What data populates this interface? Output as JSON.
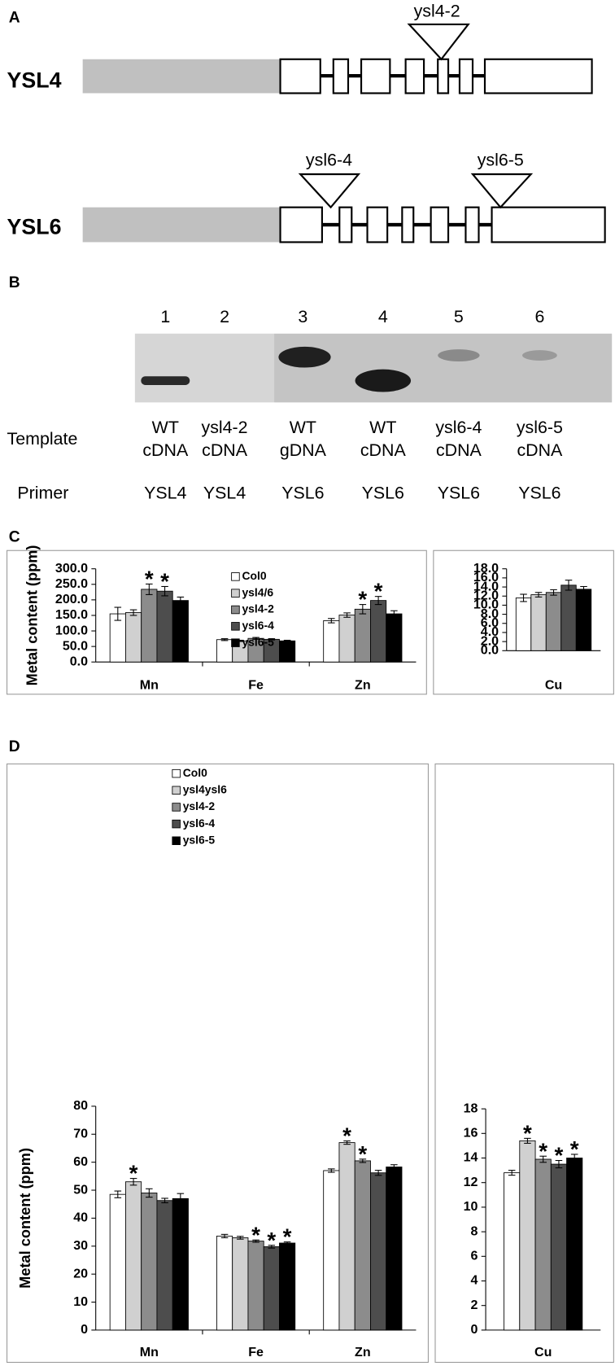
{
  "panel_a": {
    "label": "A",
    "genes": [
      {
        "name": "YSL4",
        "insertions": [
          "ysl4-2"
        ]
      },
      {
        "name": "YSL6",
        "insertions": [
          "ysl6-4",
          "ysl6-5"
        ]
      }
    ]
  },
  "panel_b": {
    "label": "B",
    "lanes": [
      "1",
      "2",
      "3",
      "4",
      "5",
      "6"
    ],
    "template_label": "Template",
    "templates": [
      [
        "WT",
        "cDNA"
      ],
      [
        "ysl4-2",
        "cDNA"
      ],
      [
        "WT",
        "gDNA"
      ],
      [
        "WT",
        "cDNA"
      ],
      [
        "ysl6-4",
        "cDNA"
      ],
      [
        "ysl6-5",
        "cDNA"
      ]
    ],
    "primer_label": "Primer",
    "primers": [
      "YSL4",
      "YSL4",
      "YSL6",
      "YSL6",
      "YSL6",
      "YSL6"
    ]
  },
  "chart_data": [
    {
      "type": "bar",
      "panel": "C",
      "y_label": "Metal content (ppm)",
      "categories": [
        "Mn",
        "Fe",
        "Zn"
      ],
      "ylim": [
        0,
        300
      ],
      "yticks": [
        {
          "value": 0,
          "label": "0.0"
        },
        {
          "value": 50,
          "label": "50.0"
        },
        {
          "value": 100,
          "label": "100.0"
        },
        {
          "value": 150,
          "label": "150.0"
        },
        {
          "value": 200,
          "label": "200.0"
        },
        {
          "value": 250,
          "label": "250.0"
        },
        {
          "value": 300,
          "label": "300.0"
        }
      ],
      "legend": "top-center",
      "series": [
        {
          "name": "Col0",
          "color": "#ffffff",
          "values": [
            155,
            72,
            133
          ],
          "errors": [
            21,
            3,
            7
          ],
          "significance": [
            null,
            null,
            null
          ]
        },
        {
          "name": "ysl4/6",
          "color": "#d0d0d0",
          "values": [
            159,
            68,
            151
          ],
          "errors": [
            9,
            2,
            7
          ],
          "significance": [
            null,
            null,
            null
          ]
        },
        {
          "name": "ysl4-2",
          "color": "#8c8c8c",
          "values": [
            234,
            76,
            170
          ],
          "errors": [
            17,
            3,
            15
          ],
          "significance": [
            "*",
            null,
            "*"
          ]
        },
        {
          "name": "ysl6-4",
          "color": "#4d4d4d",
          "values": [
            228,
            73,
            198
          ],
          "errors": [
            15,
            2,
            13
          ],
          "significance": [
            "*",
            null,
            "*"
          ]
        },
        {
          "name": "ysl6-5",
          "color": "#000000",
          "values": [
            198,
            68,
            155
          ],
          "errors": [
            11,
            2,
            10
          ],
          "significance": [
            null,
            null,
            null
          ]
        }
      ]
    },
    {
      "type": "bar",
      "categories": [
        "Cu"
      ],
      "ylim": [
        0,
        18
      ],
      "yticks": [
        {
          "value": 0,
          "label": "0.0"
        },
        {
          "value": 2,
          "label": "2.0"
        },
        {
          "value": 4,
          "label": "4.0"
        },
        {
          "value": 6,
          "label": "6.0"
        },
        {
          "value": 8,
          "label": "8.0"
        },
        {
          "value": 10,
          "label": "10.0"
        },
        {
          "value": 12,
          "label": "12.0"
        },
        {
          "value": 14,
          "label": "14.0"
        },
        {
          "value": 16,
          "label": "16.0"
        },
        {
          "value": 18,
          "label": "18.0"
        }
      ],
      "series": [
        {
          "color": "#ffffff",
          "values": [
            11.6
          ],
          "errors": [
            0.8
          ],
          "significance": [
            null
          ]
        },
        {
          "color": "#d0d0d0",
          "values": [
            12.3
          ],
          "errors": [
            0.5
          ],
          "significance": [
            null
          ]
        },
        {
          "color": "#8c8c8c",
          "values": [
            12.8
          ],
          "errors": [
            0.6
          ],
          "significance": [
            null
          ]
        },
        {
          "color": "#4d4d4d",
          "values": [
            14.4
          ],
          "errors": [
            1.1
          ],
          "significance": [
            null
          ]
        },
        {
          "color": "#000000",
          "values": [
            13.5
          ],
          "errors": [
            0.6
          ],
          "significance": [
            null
          ]
        }
      ]
    },
    {
      "type": "bar",
      "panel": "D",
      "y_label": "Metal content (ppm)",
      "categories": [
        "Mn",
        "Fe",
        "Zn"
      ],
      "ylim": [
        0,
        80
      ],
      "yticks": [
        0,
        10,
        20,
        30,
        40,
        50,
        60,
        70,
        80
      ],
      "legend": "top-left",
      "series": [
        {
          "name": "Col0",
          "color": "#ffffff",
          "values": [
            48.5,
            33.6,
            57
          ],
          "errors": [
            1.2,
            0.6,
            0.6
          ],
          "significance": [
            null,
            null,
            null
          ]
        },
        {
          "name": "ysl4ysl6",
          "color": "#d0d0d0",
          "values": [
            53,
            33,
            67
          ],
          "errors": [
            1.2,
            0.5,
            0.6
          ],
          "significance": [
            "*",
            null,
            "*"
          ]
        },
        {
          "name": "ysl4-2",
          "color": "#8c8c8c",
          "values": [
            49,
            31.8,
            60.5
          ],
          "errors": [
            1.5,
            0.4,
            0.6
          ],
          "significance": [
            null,
            "*",
            "*"
          ]
        },
        {
          "name": "ysl6-4",
          "color": "#4d4d4d",
          "values": [
            46.3,
            29.8,
            56.2
          ],
          "errors": [
            0.8,
            0.5,
            0.9
          ],
          "significance": [
            null,
            "*",
            null
          ]
        },
        {
          "name": "ysl6-5",
          "color": "#000000",
          "values": [
            47,
            31.1,
            58.3
          ],
          "errors": [
            1.8,
            0.4,
            0.8
          ],
          "significance": [
            null,
            "*",
            null
          ]
        }
      ]
    },
    {
      "type": "bar",
      "categories": [
        "Cu"
      ],
      "ylim": [
        0,
        18
      ],
      "yticks": [
        0,
        2,
        4,
        6,
        8,
        10,
        12,
        14,
        16,
        18
      ],
      "series": [
        {
          "color": "#ffffff",
          "values": [
            12.8
          ],
          "errors": [
            0.2
          ],
          "significance": [
            null
          ]
        },
        {
          "color": "#d0d0d0",
          "values": [
            15.4
          ],
          "errors": [
            0.2
          ],
          "significance": [
            "*"
          ]
        },
        {
          "color": "#8c8c8c",
          "values": [
            13.9
          ],
          "errors": [
            0.25
          ],
          "significance": [
            "*"
          ]
        },
        {
          "color": "#4d4d4d",
          "values": [
            13.5
          ],
          "errors": [
            0.3
          ],
          "significance": [
            "*"
          ]
        },
        {
          "color": "#000000",
          "values": [
            14.0
          ],
          "errors": [
            0.3
          ],
          "significance": [
            "*"
          ]
        }
      ]
    }
  ]
}
